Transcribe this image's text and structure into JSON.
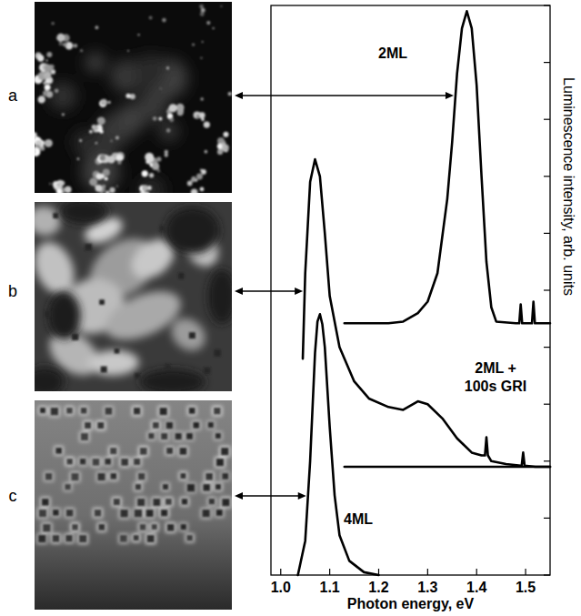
{
  "panels": [
    {
      "label": "a"
    },
    {
      "label": "b"
    },
    {
      "label": "c"
    }
  ],
  "chart_data": {
    "type": "line",
    "xlabel": "Photon energy, eV",
    "ylabel": "Luminescence intensity, arb. units",
    "xlim": [
      0.98,
      1.55
    ],
    "ylim": [
      0,
      10
    ],
    "xticks": [
      {
        "value": 1,
        "label": "1.0"
      },
      1.1,
      1.2,
      1.3,
      1.4,
      1.5
    ],
    "yticks": [
      0,
      1,
      2,
      3,
      4,
      5,
      6,
      7,
      8,
      9,
      10
    ],
    "tick_labels": "x",
    "series": [
      {
        "name": "2ML",
        "color": "#000000",
        "x": [
          1.13,
          1.22,
          1.25,
          1.28,
          1.3,
          1.32,
          1.34,
          1.35,
          1.36,
          1.37,
          1.38,
          1.39,
          1.4,
          1.41,
          1.42,
          1.43,
          1.44,
          1.48,
          1.487,
          1.49,
          1.493,
          1.51,
          1.513,
          1.516,
          1.519,
          1.55
        ],
        "values": [
          4.42,
          4.42,
          4.45,
          4.6,
          4.8,
          5.3,
          6.6,
          7.6,
          8.8,
          9.6,
          9.9,
          9.6,
          8.6,
          7.0,
          5.5,
          4.7,
          4.45,
          4.42,
          4.42,
          4.75,
          4.42,
          4.42,
          4.42,
          4.8,
          4.42,
          4.42
        ]
      },
      {
        "name": "2ML + 100s GRI",
        "color": "#000000",
        "x": [
          1.045,
          1.05,
          1.06,
          1.07,
          1.08,
          1.09,
          1.1,
          1.12,
          1.15,
          1.18,
          1.22,
          1.25,
          1.28,
          1.3,
          1.33,
          1.36,
          1.39,
          1.41,
          1.417,
          1.42,
          1.423,
          1.43,
          1.46,
          1.49,
          1.492,
          1.495,
          1.498,
          1.52,
          1.55
        ],
        "values": [
          3.8,
          5.3,
          6.9,
          7.3,
          7.0,
          6.0,
          4.9,
          4.0,
          3.4,
          3.1,
          2.95,
          2.9,
          3.05,
          3.0,
          2.75,
          2.4,
          2.15,
          2.1,
          2.1,
          2.42,
          2.1,
          2.0,
          1.95,
          1.92,
          1.92,
          2.15,
          1.92,
          1.9,
          1.9
        ]
      },
      {
        "color": "#000000",
        "x": [
          1.13,
          1.55
        ],
        "values": [
          1.9,
          1.9
        ]
      },
      {
        "name": "4ML",
        "color": "#000000",
        "x": [
          1.035,
          1.05,
          1.06,
          1.07,
          1.075,
          1.08,
          1.085,
          1.09,
          1.1,
          1.11,
          1.12,
          1.14,
          1.17,
          1.2
        ],
        "values": [
          0,
          0.6,
          2.0,
          3.9,
          4.45,
          4.58,
          4.4,
          4.0,
          2.6,
          1.4,
          0.7,
          0.25,
          0.05,
          0
        ]
      }
    ]
  }
}
